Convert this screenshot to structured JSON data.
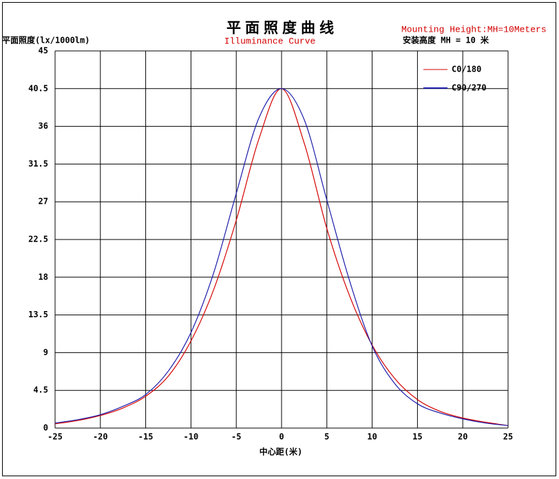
{
  "chart_data": {
    "type": "line",
    "title": "平面照度曲线",
    "subtitle": "Illuminance Curve",
    "annotations": [
      "Mounting Height:MH=10Meters",
      "安装高度 MH = 10 米"
    ],
    "ylabel": "平面照度(lx/1000lm)",
    "xlabel": "中心距(米)",
    "x": [
      -25,
      -22.5,
      -20,
      -17.5,
      -15,
      -12.5,
      -10,
      -7.5,
      -5,
      -2.5,
      0,
      2.5,
      5,
      7.5,
      10,
      12.5,
      15,
      17.5,
      20,
      22.5,
      25
    ],
    "series": [
      {
        "name": "C0/180",
        "color": "#d40000",
        "values": [
          0.5,
          0.9,
          1.5,
          2.4,
          3.8,
          6.2,
          10.4,
          16.5,
          24.8,
          34.5,
          40.5,
          34.0,
          23.8,
          15.8,
          9.9,
          5.9,
          3.4,
          2.0,
          1.2,
          0.7,
          0.3
        ]
      },
      {
        "name": "C90/270",
        "color": "#1a1aaa",
        "values": [
          0.6,
          1.0,
          1.6,
          2.6,
          4.0,
          6.8,
          11.4,
          18.5,
          28.0,
          37.0,
          40.5,
          36.8,
          27.2,
          17.6,
          9.8,
          5.3,
          2.9,
          1.8,
          1.1,
          0.6,
          0.3
        ]
      }
    ],
    "xlim": [
      -25,
      25
    ],
    "xticks": [
      -25,
      -20,
      -15,
      -10,
      -5,
      0,
      5,
      10,
      15,
      20,
      25
    ],
    "ylim": [
      0,
      45
    ],
    "yticks": [
      0,
      4.5,
      9,
      13.5,
      18,
      22.5,
      27,
      31.5,
      36,
      40.5,
      45
    ],
    "grid": true,
    "legend": "upper right"
  }
}
